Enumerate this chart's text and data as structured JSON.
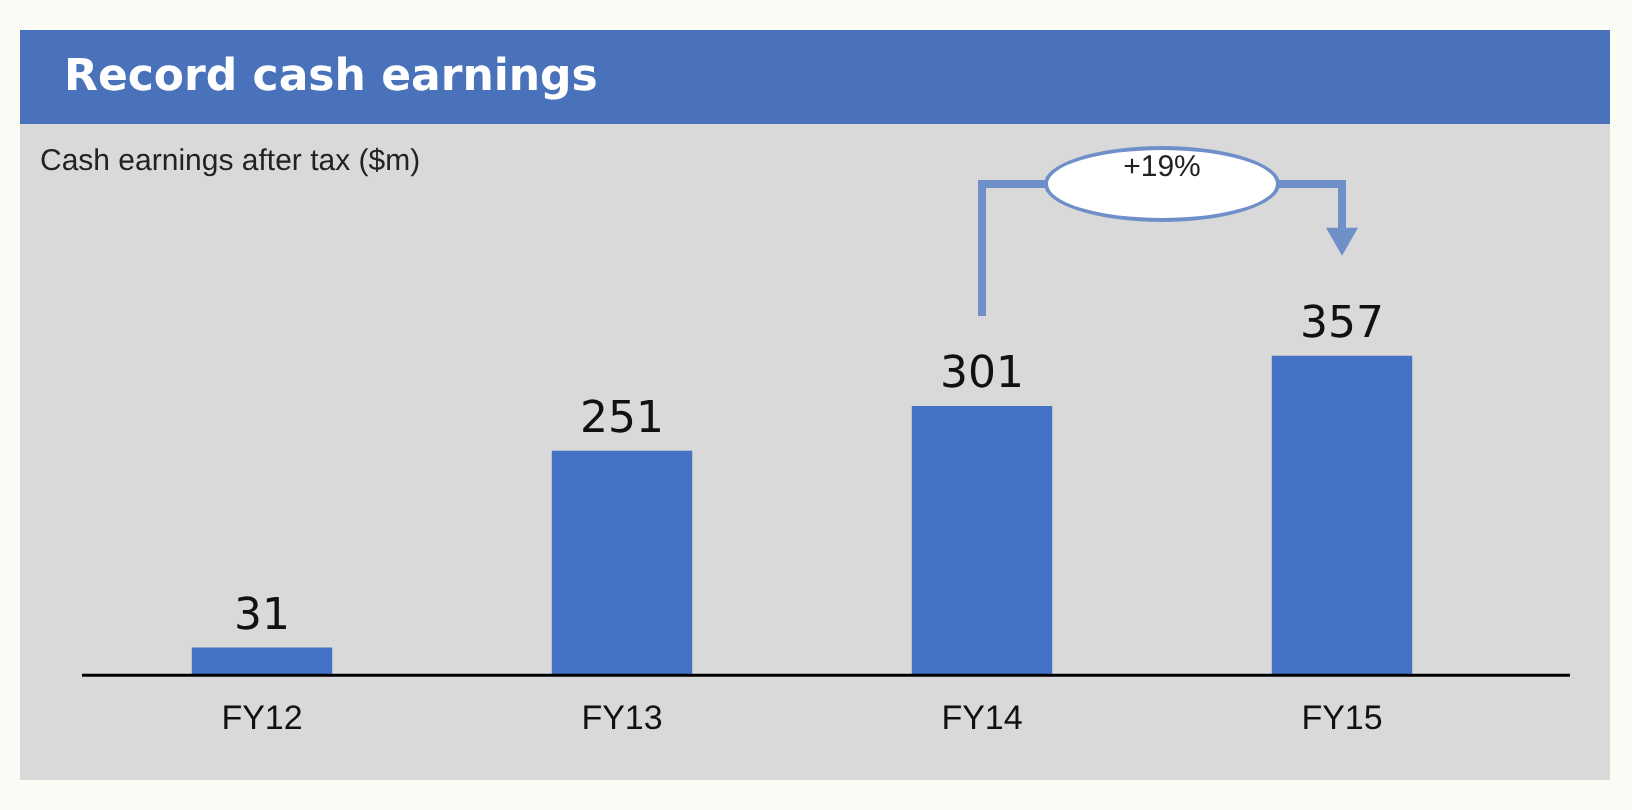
{
  "chart_data": {
    "type": "bar",
    "title": "Record cash earnings",
    "subtitle": "Cash earnings after tax ($m)",
    "categories": [
      "FY12",
      "FY13",
      "FY14",
      "FY15"
    ],
    "values": [
      31,
      251,
      301,
      357
    ],
    "color": "#4472c4",
    "data_labels": true,
    "grid": false,
    "legend": false,
    "annotations": [
      "+19%"
    ]
  }
}
